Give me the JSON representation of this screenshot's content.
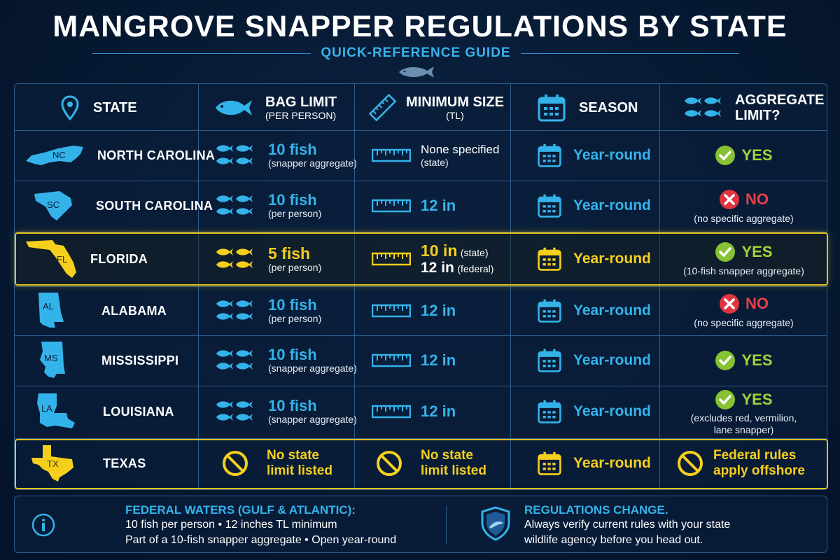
{
  "title": "MANGROVE SNAPPER REGULATIONS BY STATE",
  "subtitle": "QUICK-REFERENCE GUIDE",
  "headers": {
    "state": "STATE",
    "bag_limit": "BAG LIMIT",
    "bag_limit_sub": "(PER PERSON)",
    "min_size": "MINIMUM SIZE",
    "min_size_sub": "(TL)",
    "season": "SEASON",
    "aggregate": "AGGREGATE",
    "aggregate_2": "LIMIT?"
  },
  "rows": [
    {
      "abbr": "NC",
      "name": "NORTH CAROLINA",
      "bag": "10 fish",
      "bag_note": "(snapper aggregate)",
      "size": "None specified",
      "size_note": "(state)",
      "season": "Year-round",
      "agg": "YES",
      "agg_note": ""
    },
    {
      "abbr": "SC",
      "name": "SOUTH CAROLINA",
      "bag": "10 fish",
      "bag_note": "(per person)",
      "size": "12 in",
      "size_note": "",
      "season": "Year-round",
      "agg": "NO",
      "agg_note": "(no specific aggregate)"
    },
    {
      "abbr": "FL",
      "name": "FLORIDA",
      "bag": "5 fish",
      "bag_note": "(per person)",
      "size": "10 in",
      "size_note": "(state)",
      "size2": "12 in",
      "size2_note": "(federal)",
      "season": "Year-round",
      "agg": "YES",
      "agg_note": "(10-fish snapper aggregate)"
    },
    {
      "abbr": "AL",
      "name": "ALABAMA",
      "bag": "10 fish",
      "bag_note": "(per person)",
      "size": "12 in",
      "size_note": "",
      "season": "Year-round",
      "agg": "NO",
      "agg_note": "(no specific aggregate)"
    },
    {
      "abbr": "MS",
      "name": "MISSISSIPPI",
      "bag": "10 fish",
      "bag_note": "(snapper aggregate)",
      "size": "12 in",
      "size_note": "",
      "season": "Year-round",
      "agg": "YES",
      "agg_note": ""
    },
    {
      "abbr": "LA",
      "name": "LOUISIANA",
      "bag": "10 fish",
      "bag_note": "(snapper aggregate)",
      "size": "12 in",
      "size_note": "",
      "season": "Year-round",
      "agg": "YES",
      "agg_note": "(excludes red, vermilion,",
      "agg_note2": "lane snapper)"
    },
    {
      "abbr": "TX",
      "name": "TEXAS",
      "bag": "No state",
      "bag2": "limit listed",
      "size": "No state",
      "size2": "limit listed",
      "season": "Year-round",
      "agg": "Federal rules",
      "agg2": "apply offshore"
    }
  ],
  "footer": {
    "left_head": "FEDERAL WATERS (GULF & ATLANTIC):",
    "left_line1": "10 fish per person • 12 inches TL minimum",
    "left_line2": "Part of a 10-fish snapper aggregate • Open year-round",
    "right_head": "REGULATIONS CHANGE.",
    "right_line1": "Always verify current rules with your state",
    "right_line2": "wildlife agency before you head out."
  },
  "colors": {
    "accent_blue": "#34b3ea",
    "highlight_yellow": "#f6cf1d",
    "yes_green": "#a6d23a",
    "no_red": "#e8404a"
  }
}
